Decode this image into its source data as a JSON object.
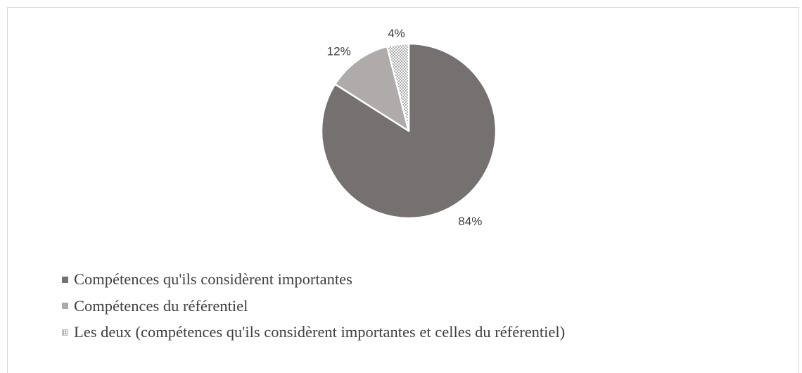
{
  "chart_data": {
    "type": "pie",
    "title": "",
    "categories": [
      "Compétences qu'ils considèrent importantes",
      "Compétences du référentiel",
      "Les deux (compétences qu'ils considèrent importantes et celles du référentiel)"
    ],
    "values": [
      84,
      12,
      4
    ],
    "data_labels": [
      "84%",
      "12%",
      "4%"
    ],
    "colors": [
      "#767171",
      "#afabab",
      "dotted"
    ],
    "legend_position": "bottom"
  }
}
